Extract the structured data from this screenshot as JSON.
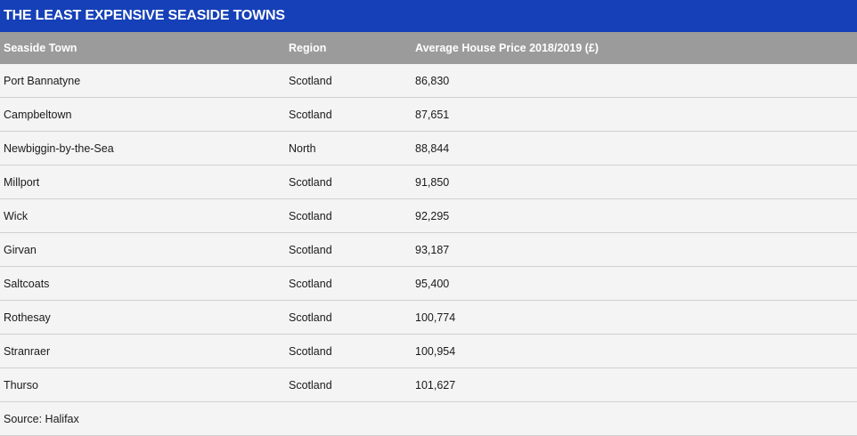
{
  "title": "THE LEAST EXPENSIVE SEASIDE TOWNS",
  "columns": {
    "town": "Seaside Town",
    "region": "Region",
    "price": "Average House Price 2018/2019 (£)"
  },
  "rows": [
    {
      "town": "Port Bannatyne",
      "region": "Scotland",
      "price": "86,830"
    },
    {
      "town": "Campbeltown",
      "region": "Scotland",
      "price": "87,651"
    },
    {
      "town": "Newbiggin-by-the-Sea",
      "region": "North",
      "price": "88,844"
    },
    {
      "town": "Millport",
      "region": "Scotland",
      "price": "91,850"
    },
    {
      "town": "Wick",
      "region": "Scotland",
      "price": "92,295"
    },
    {
      "town": "Girvan",
      "region": "Scotland",
      "price": "93,187"
    },
    {
      "town": "Saltcoats",
      "region": "Scotland",
      "price": "95,400"
    },
    {
      "town": "Rothesay",
      "region": "Scotland",
      "price": "100,774"
    },
    {
      "town": "Stranraer",
      "region": "Scotland",
      "price": "100,954"
    },
    {
      "town": "Thurso",
      "region": "Scotland",
      "price": "101,627"
    }
  ],
  "source": "Source: Halifax"
}
